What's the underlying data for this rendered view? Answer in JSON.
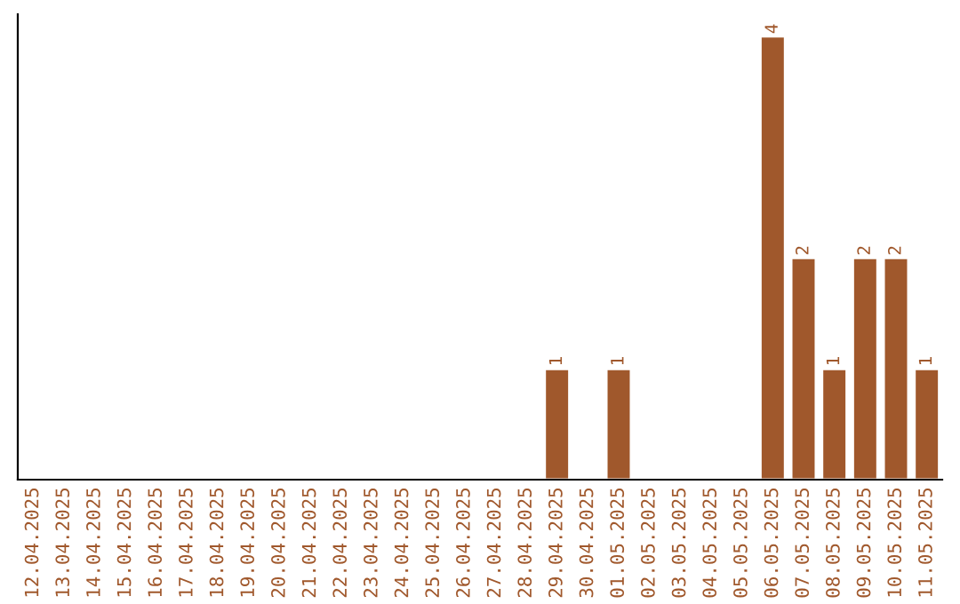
{
  "chart_data": {
    "type": "bar",
    "categories": [
      "12.04.2025",
      "13.04.2025",
      "14.04.2025",
      "15.04.2025",
      "16.04.2025",
      "17.04.2025",
      "18.04.2025",
      "19.04.2025",
      "20.04.2025",
      "21.04.2025",
      "22.04.2025",
      "23.04.2025",
      "24.04.2025",
      "25.04.2025",
      "26.04.2025",
      "27.04.2025",
      "28.04.2025",
      "29.04.2025",
      "30.04.2025",
      "01.05.2025",
      "02.05.2025",
      "03.05.2025",
      "04.05.2025",
      "05.05.2025",
      "06.05.2025",
      "07.05.2025",
      "08.05.2025",
      "09.05.2025",
      "10.05.2025",
      "11.05.2025"
    ],
    "values": [
      null,
      null,
      null,
      null,
      null,
      null,
      null,
      null,
      null,
      null,
      null,
      null,
      null,
      null,
      null,
      null,
      null,
      1,
      null,
      1,
      null,
      null,
      null,
      null,
      4,
      2,
      1,
      2,
      2,
      1
    ],
    "data_labels": true,
    "color": "#a0582c",
    "tick_labels": "x",
    "grid": false,
    "legend": false
  }
}
